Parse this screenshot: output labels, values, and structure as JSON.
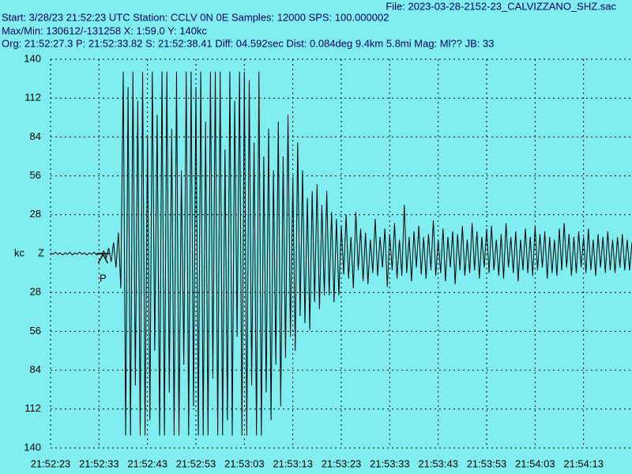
{
  "chart_data": {
    "type": "line",
    "title": "File: 2023-03-28-2152-23_CALVIZZANO_SHZ.sac",
    "info_lines": [
      "Start: 3/28/23 21:52:23 UTC Station: CCLV 0N 0E Samples: 12000  SPS: 100.000002",
      "Max/Min: 130612/-131258 X: 1:59.0 Y: 140kc",
      "Org: 21:52:27.3 P: 21:52:33.82 S: 21:52:38.41 Diff: 04.592sec Dist: 0.084deg 9.4km 5.8mi  Mag: Ml?? JB: 33"
    ],
    "y_unit": "kc",
    "channel": "Z",
    "p_marker": {
      "label": "P",
      "x": 10.82
    },
    "color": "#000000",
    "grid": true,
    "xlim": [
      0,
      120
    ],
    "ylim": [
      -140,
      140
    ],
    "xticks": [
      {
        "value": 0,
        "label": "21:52:23"
      },
      {
        "value": 10,
        "label": "21:52:33"
      },
      {
        "value": 20,
        "label": "21:52:43"
      },
      {
        "value": 30,
        "label": "21:52:53"
      },
      {
        "value": 40,
        "label": "21:53:03"
      },
      {
        "value": 50,
        "label": "21:53:13"
      },
      {
        "value": 60,
        "label": "21:53:23"
      },
      {
        "value": 70,
        "label": "21:53:33"
      },
      {
        "value": 80,
        "label": "21:53:43"
      },
      {
        "value": 90,
        "label": "21:53:53"
      },
      {
        "value": 100,
        "label": "21:54:03"
      },
      {
        "value": 110,
        "label": "21:54:13"
      }
    ],
    "yticks": [
      140,
      112,
      84,
      56,
      28,
      {
        "value": -28,
        "label": "28"
      },
      {
        "value": -56,
        "label": "56"
      },
      {
        "value": -84,
        "label": "84"
      },
      {
        "value": -112,
        "label": "112"
      },
      {
        "value": -140,
        "label": "140"
      }
    ],
    "x": [
      0,
      0.5,
      1,
      1.5,
      2,
      2.5,
      3,
      3.5,
      4,
      4.5,
      5,
      5.5,
      6,
      6.5,
      7,
      7.5,
      8,
      8.5,
      9,
      9.5,
      10,
      10.5,
      11,
      11.5,
      12,
      12.5,
      13,
      13.5,
      14,
      14.5,
      15,
      15.5,
      16,
      16.5,
      17,
      17.5,
      18,
      18.5,
      19,
      19.5,
      20,
      20.5,
      21,
      21.5,
      22,
      22.5,
      23,
      23.5,
      24,
      24.5,
      25,
      25.5,
      26,
      26.5,
      27,
      27.5,
      28,
      28.5,
      29,
      29.5,
      30,
      30.5,
      31,
      31.5,
      32,
      32.5,
      33,
      33.5,
      34,
      34.5,
      35,
      35.5,
      36,
      36.5,
      37,
      37.5,
      38,
      38.5,
      39,
      39.5,
      40,
      40.5,
      41,
      41.5,
      42,
      42.5,
      43,
      43.5,
      44,
      44.5,
      45,
      45.5,
      46,
      46.5,
      47,
      47.5,
      48,
      48.5,
      49,
      49.5,
      50,
      50.5,
      51,
      51.5,
      52,
      52.5,
      53,
      53.5,
      54,
      54.5,
      55,
      55.5,
      56,
      56.5,
      57,
      57.5,
      58,
      58.5,
      59,
      59.5,
      60,
      60.5,
      61,
      61.5,
      62,
      62.5,
      63,
      63.5,
      64,
      64.5,
      65,
      65.5,
      66,
      66.5,
      67,
      67.5,
      68,
      68.5,
      69,
      69.5,
      70,
      70.5,
      71,
      71.5,
      72,
      72.5,
      73,
      73.5,
      74,
      74.5,
      75,
      75.5,
      76,
      76.5,
      77,
      77.5,
      78,
      78.5,
      79,
      79.5,
      80,
      80.5,
      81,
      81.5,
      82,
      82.5,
      83,
      83.5,
      84,
      84.5,
      85,
      85.5,
      86,
      86.5,
      87,
      87.5,
      88,
      88.5,
      89,
      89.5,
      90,
      90.5,
      91,
      91.5,
      92,
      92.5,
      93,
      93.5,
      94,
      94.5,
      95,
      95.5,
      96,
      96.5,
      97,
      97.5,
      98,
      98.5,
      99,
      99.5,
      100,
      100.5,
      101,
      101.5,
      102,
      102.5,
      103,
      103.5,
      104,
      104.5,
      105,
      105.5,
      106,
      106.5,
      107,
      107.5,
      108,
      108.5,
      109,
      109.5,
      110,
      110.5,
      111,
      111.5,
      112,
      112.5,
      113,
      113.5,
      114,
      114.5,
      115,
      115.5,
      116,
      116.5,
      117,
      117.5,
      118,
      118.5,
      119,
      119.5,
      120
    ],
    "values": [
      0.5,
      -0.5,
      1,
      -0.5,
      0.5,
      -1,
      0.5,
      -0.5,
      1,
      -1,
      0.5,
      -0.5,
      1,
      -0.5,
      0.5,
      -1,
      0.5,
      -0.5,
      1,
      -1,
      0.5,
      -0.5,
      2,
      -3,
      4,
      -6,
      8,
      -10,
      15,
      -25,
      131,
      -131,
      120,
      -131,
      131,
      -95,
      110,
      -131,
      131,
      -131,
      85,
      -120,
      131,
      -70,
      100,
      -131,
      131,
      -131,
      131,
      -100,
      90,
      -131,
      131,
      -131,
      60,
      -80,
      131,
      -131,
      131,
      -110,
      120,
      -131,
      131,
      -131,
      95,
      -131,
      131,
      -90,
      131,
      -131,
      131,
      -131,
      75,
      -120,
      131,
      -131,
      110,
      -60,
      131,
      -131,
      131,
      -131,
      125,
      -95,
      80,
      -131,
      131,
      -131,
      70,
      -100,
      90,
      -120,
      60,
      -80,
      95,
      -110,
      70,
      -75,
      100,
      -60,
      55,
      -70,
      80,
      -45,
      60,
      -50,
      40,
      -55,
      45,
      -35,
      50,
      -40,
      35,
      -30,
      45,
      -30,
      30,
      -35,
      25,
      -30,
      20,
      -15,
      28,
      -18,
      12,
      -25,
      30,
      -12,
      18,
      -20,
      15,
      -22,
      10,
      -14,
      25,
      -16,
      12,
      -10,
      18,
      -24,
      14,
      -12,
      22,
      -18,
      10,
      -16,
      35,
      -14,
      12,
      -20,
      16,
      -10,
      20,
      -15,
      12,
      -18,
      14,
      -12,
      24,
      -16,
      10,
      -14,
      18,
      -20,
      12,
      -10,
      16,
      -22,
      14,
      -12,
      20,
      -16,
      10,
      -14,
      22,
      -12,
      16,
      -18,
      12,
      -10,
      18,
      -14,
      20,
      -12,
      10,
      -16,
      14,
      -18,
      22,
      -10,
      12,
      -14,
      16,
      -20,
      10,
      -12,
      18,
      -14,
      12,
      -16,
      20,
      -12,
      14,
      -10,
      16,
      -18,
      12,
      -14,
      10,
      -16,
      18,
      -12,
      22,
      -10,
      14,
      -16,
      12,
      -14,
      16,
      -10,
      12,
      -14,
      18,
      -12,
      10,
      -16,
      14,
      -10,
      12,
      -14,
      16,
      -12,
      10,
      -14,
      12,
      -10,
      14,
      -12,
      10,
      -12,
      8
    ]
  }
}
